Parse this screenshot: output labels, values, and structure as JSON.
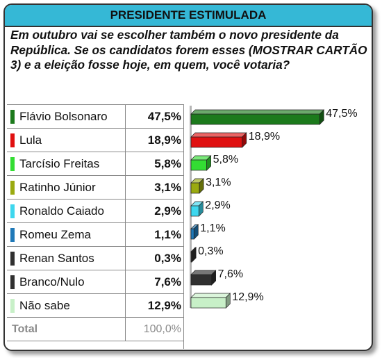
{
  "header": {
    "title": "PRESIDENTE ESTIMULADA"
  },
  "question": "Em outubro vai se escolher também o novo presidente da República. Se os candidatos forem esses (MOSTRAR CARTÃO 3) e a eleição fosse hoje, em quem, você votaria?",
  "chart_data": {
    "type": "bar",
    "orientation": "horizontal",
    "categories": [
      "Flávio Bolsonaro",
      "Lula",
      "Tarcísio Freitas",
      "Ratinho Júnior",
      "Ronaldo Caiado",
      "Romeu Zema",
      "Renan Santos",
      "Branco/Nulo",
      "Não sabe"
    ],
    "values": [
      47.5,
      18.9,
      5.8,
      3.1,
      2.9,
      1.1,
      0.3,
      7.6,
      12.9
    ],
    "value_labels": [
      "47,5%",
      "18,9%",
      "5,8%",
      "3,1%",
      "2,9%",
      "1,1%",
      "0,3%",
      "7,6%",
      "12,9%"
    ],
    "colors": [
      "#1c7a1c",
      "#e01010",
      "#33dd33",
      "#9aaa10",
      "#3ed7ee",
      "#1f79b8",
      "#303030",
      "#303030",
      "#c8f0c8"
    ],
    "xlim": [
      0,
      50
    ],
    "grid": false,
    "legend": "none"
  },
  "total": {
    "label": "Total",
    "value": "100,0%"
  }
}
